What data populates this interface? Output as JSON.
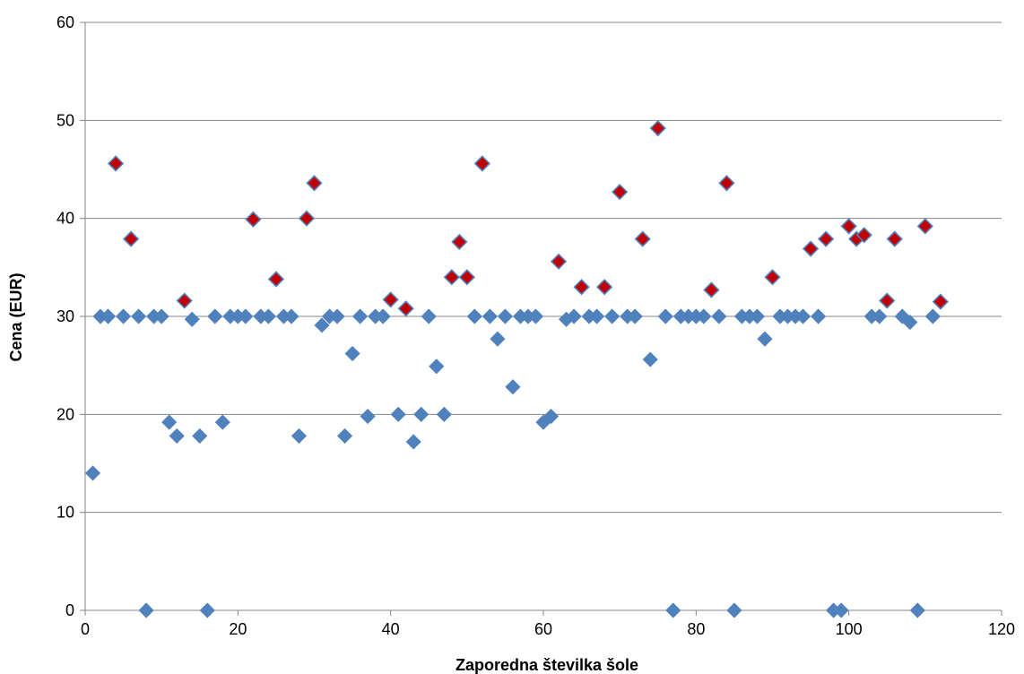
{
  "chart_data": {
    "type": "scatter",
    "title": "",
    "xlabel": "Zaporedna številka šole",
    "ylabel": "Cena (EUR)",
    "xlim": [
      0,
      120
    ],
    "ylim": [
      0,
      60
    ],
    "xticks": [
      0,
      20,
      40,
      60,
      80,
      100,
      120
    ],
    "yticks": [
      0,
      10,
      20,
      30,
      40,
      50,
      60
    ],
    "grid": "horizontal",
    "legend": "none",
    "series": [
      {
        "marker": "diamond",
        "color": "#4F81BD",
        "points": [
          [
            1,
            14
          ],
          [
            2,
            30
          ],
          [
            3,
            30
          ],
          [
            5,
            30
          ],
          [
            7,
            30
          ],
          [
            8,
            0
          ],
          [
            9,
            30
          ],
          [
            10,
            30
          ],
          [
            11,
            19.2
          ],
          [
            12,
            17.8
          ],
          [
            14,
            29.7
          ],
          [
            15,
            17.8
          ],
          [
            16,
            0
          ],
          [
            17,
            30
          ],
          [
            18,
            19.2
          ],
          [
            19,
            30
          ],
          [
            20,
            30
          ],
          [
            21,
            30
          ],
          [
            23,
            30
          ],
          [
            24,
            30
          ],
          [
            26,
            30
          ],
          [
            27,
            30
          ],
          [
            28,
            17.8
          ],
          [
            31,
            29.1
          ],
          [
            32,
            30
          ],
          [
            33,
            30
          ],
          [
            34,
            17.8
          ],
          [
            35,
            26.2
          ],
          [
            36,
            30
          ],
          [
            37,
            19.8
          ],
          [
            38,
            30
          ],
          [
            39,
            30
          ],
          [
            41,
            20
          ],
          [
            43,
            17.2
          ],
          [
            44,
            20
          ],
          [
            45,
            30
          ],
          [
            46,
            24.9
          ],
          [
            47,
            20
          ],
          [
            51,
            30
          ],
          [
            53,
            30
          ],
          [
            54,
            27.7
          ],
          [
            55,
            30
          ],
          [
            56,
            22.8
          ],
          [
            57,
            30
          ],
          [
            58,
            30
          ],
          [
            59,
            30
          ],
          [
            60,
            19.2
          ],
          [
            61,
            19.8
          ],
          [
            63,
            29.7
          ],
          [
            64,
            30
          ],
          [
            66,
            30
          ],
          [
            67,
            30
          ],
          [
            69,
            30
          ],
          [
            71,
            30
          ],
          [
            72,
            30
          ],
          [
            74,
            25.6
          ],
          [
            76,
            30
          ],
          [
            77,
            0
          ],
          [
            78,
            30
          ],
          [
            79,
            30
          ],
          [
            80,
            30
          ],
          [
            81,
            30
          ],
          [
            83,
            30
          ],
          [
            85,
            0
          ],
          [
            86,
            30
          ],
          [
            87,
            30
          ],
          [
            88,
            30
          ],
          [
            89,
            27.7
          ],
          [
            91,
            30
          ],
          [
            92,
            30
          ],
          [
            93,
            30
          ],
          [
            94,
            30
          ],
          [
            96,
            30
          ],
          [
            98,
            0
          ],
          [
            99,
            0
          ],
          [
            103,
            30
          ],
          [
            104,
            30
          ],
          [
            107,
            30
          ],
          [
            108,
            29.4
          ],
          [
            109,
            0
          ],
          [
            111,
            30
          ]
        ]
      },
      {
        "marker": "diamond",
        "color": "#C00000",
        "edge_color": "#4F81BD",
        "points": [
          [
            4,
            45.6
          ],
          [
            6,
            37.9
          ],
          [
            13,
            31.6
          ],
          [
            22,
            39.9
          ],
          [
            25,
            33.8
          ],
          [
            29,
            40
          ],
          [
            30,
            43.6
          ],
          [
            40,
            31.7
          ],
          [
            42,
            30.8
          ],
          [
            48,
            34
          ],
          [
            49,
            37.6
          ],
          [
            50,
            34
          ],
          [
            52,
            45.6
          ],
          [
            62,
            35.6
          ],
          [
            65,
            33
          ],
          [
            68,
            33
          ],
          [
            70,
            42.7
          ],
          [
            73,
            37.9
          ],
          [
            75,
            49.2
          ],
          [
            82,
            32.7
          ],
          [
            84,
            43.6
          ],
          [
            90,
            34
          ],
          [
            95,
            36.9
          ],
          [
            97,
            37.9
          ],
          [
            100,
            39.2
          ],
          [
            101,
            37.9
          ],
          [
            102,
            38.3
          ],
          [
            105,
            31.6
          ],
          [
            106,
            37.9
          ],
          [
            110,
            39.2
          ],
          [
            112,
            31.5
          ]
        ]
      }
    ]
  }
}
